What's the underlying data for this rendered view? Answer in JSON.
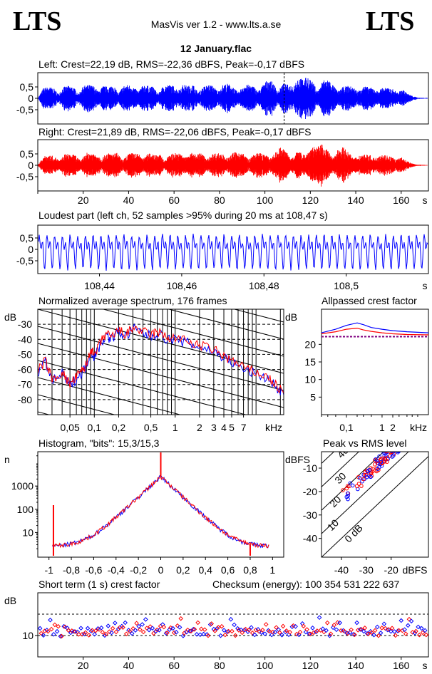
{
  "header": {
    "logo_left": "LTS",
    "logo_right": "LTS",
    "app_title": "MasVis ver 1.2 - www.lts.a.se",
    "file_name": "12 January.flac"
  },
  "colors": {
    "left": "#0000ff",
    "right": "#ff0000",
    "reference": "#800080"
  },
  "chart_data": [
    {
      "id": "left-waveform",
      "type": "line",
      "title": "Left: Crest=22,19 dB, RMS=-22,36 dBFS, Peak=-0,17 dBFS",
      "y_ticks": [
        "0,5",
        "0",
        "-0,5"
      ],
      "ylim": [
        -1,
        1
      ],
      "xlim": [
        0,
        172
      ],
      "marker_x": 108.47,
      "envelope": [
        0.05,
        0.45,
        0.5,
        0.45,
        0.2,
        0.5,
        0.55,
        0.5,
        0.2,
        0.55,
        0.6,
        0.55,
        0.3,
        0.55,
        0.5,
        0.6,
        0.2,
        0.55,
        0.6,
        0.5,
        0.3,
        0.6,
        0.55,
        0.5,
        0.2,
        0.55,
        0.6,
        0.55,
        0.35,
        0.6,
        0.55,
        0.6,
        0.25,
        0.5,
        0.6,
        0.55,
        0.3,
        0.6,
        0.65,
        0.5,
        0.25,
        0.55,
        0.6,
        0.55,
        0.3,
        0.6,
        0.85,
        0.7,
        0.3,
        0.65,
        0.6,
        0.55,
        0.9,
        0.85,
        0.95,
        0.7,
        0.3,
        0.8,
        0.85,
        0.6,
        0.3,
        0.5,
        0.55,
        0.5,
        0.3,
        0.55,
        0.5,
        0.45,
        0.3,
        0.5,
        0.45,
        0.4,
        0.25,
        0.4,
        0.2,
        0.1,
        0.03,
        0.02,
        0.02
      ]
    },
    {
      "id": "right-waveform",
      "type": "line",
      "title": "Right: Crest=21,89 dB, RMS=-22,06 dBFS, Peak=-0,17 dBFS",
      "y_ticks": [
        "0,5",
        "0",
        "-0,5"
      ],
      "ylim": [
        -1,
        1
      ],
      "x_ticks": [
        "20",
        "40",
        "60",
        "80",
        "100",
        "120",
        "140",
        "160",
        "s"
      ],
      "xlim": [
        0,
        172
      ],
      "envelope": [
        0.05,
        0.4,
        0.45,
        0.4,
        0.2,
        0.5,
        0.5,
        0.45,
        0.2,
        0.55,
        0.55,
        0.5,
        0.3,
        0.55,
        0.5,
        0.55,
        0.2,
        0.5,
        0.55,
        0.5,
        0.3,
        0.55,
        0.5,
        0.5,
        0.2,
        0.5,
        0.55,
        0.5,
        0.35,
        0.55,
        0.5,
        0.55,
        0.25,
        0.5,
        0.55,
        0.5,
        0.3,
        0.55,
        0.6,
        0.5,
        0.25,
        0.5,
        0.55,
        0.5,
        0.3,
        0.55,
        0.8,
        0.65,
        0.3,
        0.6,
        0.55,
        0.5,
        0.85,
        0.8,
        0.95,
        0.65,
        0.3,
        0.75,
        0.8,
        0.55,
        0.3,
        0.45,
        0.5,
        0.45,
        0.3,
        0.5,
        0.45,
        0.4,
        0.25,
        0.35,
        0.2,
        0.08,
        0.03,
        0.02,
        0.02
      ]
    },
    {
      "id": "loudest-part",
      "type": "line",
      "title": "Loudest part (left  ch, 52 samples >95% during 20 ms at 108,47 s)",
      "y_ticks": [
        "0,5",
        "0",
        "-0,5"
      ],
      "ylim": [
        -1,
        1
      ],
      "x_ticks": [
        "108,44",
        "108,46",
        "108,48",
        "108,5",
        "s"
      ],
      "xlim": [
        108.425,
        108.52
      ]
    },
    {
      "id": "average-spectrum",
      "type": "line",
      "title": "Normalized average spectrum, 176 frames",
      "ylabel": "dB",
      "y_ticks": [
        "-30",
        "-40",
        "-50",
        "-60",
        "-70",
        "-80"
      ],
      "ylim": [
        -90,
        -20
      ],
      "x_ticks": [
        "0,05",
        "0,1",
        "0,2",
        "0,5",
        "1",
        "2",
        "3",
        "4",
        "5",
        "7",
        "kHz"
      ],
      "xlim": [
        0.02,
        22
      ],
      "x_scale": "log",
      "series": [
        {
          "color": "#0000ff",
          "points": [
            [
              0.02,
              -62
            ],
            [
              0.025,
              -55
            ],
            [
              0.03,
              -68
            ],
            [
              0.04,
              -63
            ],
            [
              0.05,
              -71
            ],
            [
              0.06,
              -66
            ],
            [
              0.07,
              -62
            ],
            [
              0.08,
              -58
            ],
            [
              0.09,
              -47
            ],
            [
              0.1,
              -52
            ],
            [
              0.12,
              -43
            ],
            [
              0.14,
              -37
            ],
            [
              0.16,
              -40
            ],
            [
              0.2,
              -35
            ],
            [
              0.25,
              -38
            ],
            [
              0.3,
              -33
            ],
            [
              0.4,
              -36
            ],
            [
              0.5,
              -38
            ],
            [
              0.6,
              -36
            ],
            [
              0.8,
              -40
            ],
            [
              1,
              -40
            ],
            [
              1.5,
              -43
            ],
            [
              2,
              -45
            ],
            [
              3,
              -48
            ],
            [
              4,
              -52
            ],
            [
              5,
              -55
            ],
            [
              7,
              -60
            ],
            [
              10,
              -63
            ],
            [
              14,
              -66
            ],
            [
              18,
              -72
            ],
            [
              22,
              -77
            ]
          ]
        },
        {
          "color": "#ff0000",
          "points": [
            [
              0.02,
              -61
            ],
            [
              0.025,
              -54
            ],
            [
              0.03,
              -67
            ],
            [
              0.04,
              -62
            ],
            [
              0.05,
              -70
            ],
            [
              0.06,
              -65
            ],
            [
              0.07,
              -61
            ],
            [
              0.08,
              -57
            ],
            [
              0.09,
              -46
            ],
            [
              0.1,
              -51
            ],
            [
              0.12,
              -42
            ],
            [
              0.14,
              -36
            ],
            [
              0.16,
              -39
            ],
            [
              0.2,
              -34
            ],
            [
              0.25,
              -37
            ],
            [
              0.3,
              -32
            ],
            [
              0.4,
              -35
            ],
            [
              0.5,
              -37
            ],
            [
              0.6,
              -35
            ],
            [
              0.8,
              -39
            ],
            [
              1,
              -39
            ],
            [
              1.5,
              -42
            ],
            [
              2,
              -44
            ],
            [
              3,
              -47
            ],
            [
              4,
              -51
            ],
            [
              5,
              -54
            ],
            [
              7,
              -59
            ],
            [
              10,
              -62
            ],
            [
              14,
              -65
            ],
            [
              18,
              -71
            ],
            [
              22,
              -76
            ]
          ]
        }
      ]
    },
    {
      "id": "allpassed-crest",
      "type": "line",
      "title": "Allpassed crest factor",
      "ylabel": "dB",
      "y_ticks": [
        "20",
        "15",
        "10",
        "5"
      ],
      "ylim": [
        0,
        30
      ],
      "x_ticks": [
        "0,1",
        "1",
        "2",
        "kHz"
      ],
      "xlim": [
        0.02,
        20
      ],
      "x_scale": "log",
      "reference": 22.2,
      "series": [
        {
          "color": "#0000ff",
          "points": [
            [
              0.02,
              23.3
            ],
            [
              0.05,
              24.3
            ],
            [
              0.1,
              25.4
            ],
            [
              0.2,
              26.1
            ],
            [
              0.3,
              25.6
            ],
            [
              0.5,
              24.8
            ],
            [
              1,
              24.3
            ],
            [
              2,
              23.9
            ],
            [
              5,
              23.6
            ],
            [
              20,
              23.3
            ]
          ]
        },
        {
          "color": "#ff0000",
          "points": [
            [
              0.02,
              23.0
            ],
            [
              0.05,
              23.6
            ],
            [
              0.1,
              24.3
            ],
            [
              0.2,
              24.6
            ],
            [
              0.3,
              24.1
            ],
            [
              0.5,
              23.7
            ],
            [
              1,
              23.3
            ],
            [
              2,
              23.0
            ],
            [
              5,
              22.8
            ],
            [
              20,
              22.7
            ]
          ]
        }
      ]
    },
    {
      "id": "histogram",
      "type": "line",
      "title": "Histogram, \"bits\": 15,3/15,3",
      "ylabel": "n",
      "y_ticks": [
        "1000",
        "100",
        "10"
      ],
      "y_scale": "log",
      "ylim": [
        1,
        30000
      ],
      "x_ticks": [
        "-1",
        "-0,8",
        "-0,6",
        "-0,4",
        "-0,2",
        "0",
        "0,2",
        "0,4",
        "0,6",
        "0,8",
        "1"
      ],
      "xlim": [
        -1.1,
        1.1
      ],
      "peak": 2500
    },
    {
      "id": "peak-vs-rms",
      "type": "scatter",
      "title": "Peak vs RMS level",
      "ylabel": "dBFS",
      "xlabel": "dBFS",
      "y_ticks": [
        "-10",
        "-20",
        "-30",
        "-40"
      ],
      "x_ticks": [
        "-40",
        "-30",
        "-20",
        "dBFS"
      ],
      "xlim": [
        -48,
        -5
      ],
      "ylim": [
        -48,
        -3
      ],
      "crest_lines": [
        "40",
        "30",
        "20",
        "10",
        "0 dB"
      ]
    },
    {
      "id": "short-term-crest",
      "type": "scatter",
      "title": "Short term (1 s) crest factor",
      "checksum": "Checksum (energy):   100 354 531 222 637",
      "ylabel": "dB",
      "y_ticks": [
        "10"
      ],
      "ylim": [
        0,
        30
      ],
      "x_ticks": [
        "20",
        "40",
        "60",
        "80",
        "100",
        "120",
        "140",
        "160",
        "s"
      ],
      "xlim": [
        0,
        172
      ]
    }
  ]
}
